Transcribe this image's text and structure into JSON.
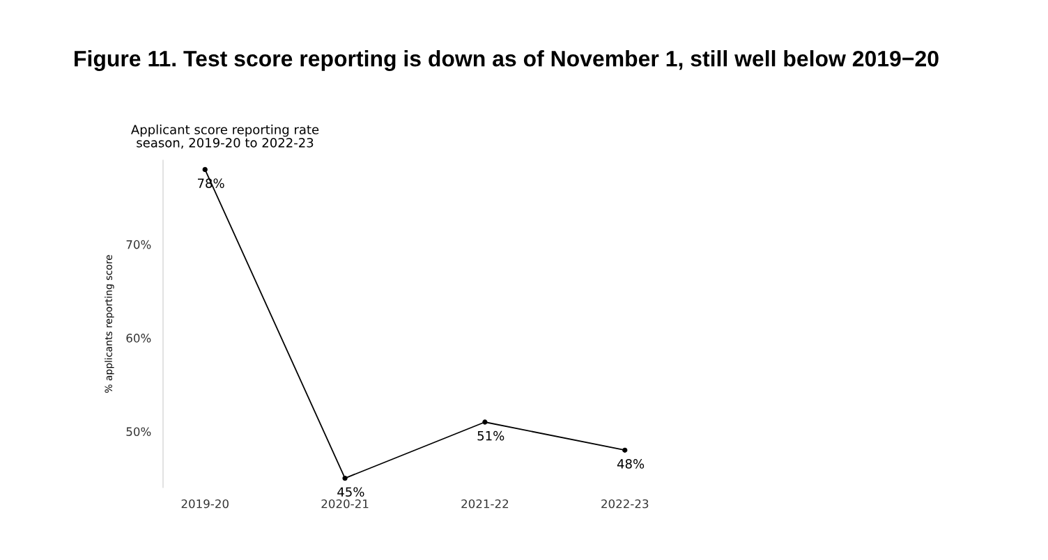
{
  "chart_data": {
    "type": "line",
    "title": "Figure 11. Test score reporting is down as of November 1, still well below 2019−20",
    "subtitle": "Applicant score reporting rate\nseason, 2019-20 to 2022-23",
    "ylabel": "% applicants reporting score",
    "categories": [
      "2019-20",
      "2020-21",
      "2021-22",
      "2022-23"
    ],
    "series": [
      {
        "color": "#000000",
        "values": [
          78,
          45,
          51,
          48
        ],
        "value_labels": [
          "78%",
          "45%",
          "51%",
          "48%"
        ]
      }
    ],
    "ylim": [
      44,
      79
    ],
    "yticks": [
      {
        "value": 50,
        "label": "50%"
      },
      {
        "value": 60,
        "label": "60%"
      },
      {
        "value": 70,
        "label": "70%"
      }
    ],
    "marker": "circle",
    "line_style": "solid",
    "grid": false,
    "legend": false
  }
}
